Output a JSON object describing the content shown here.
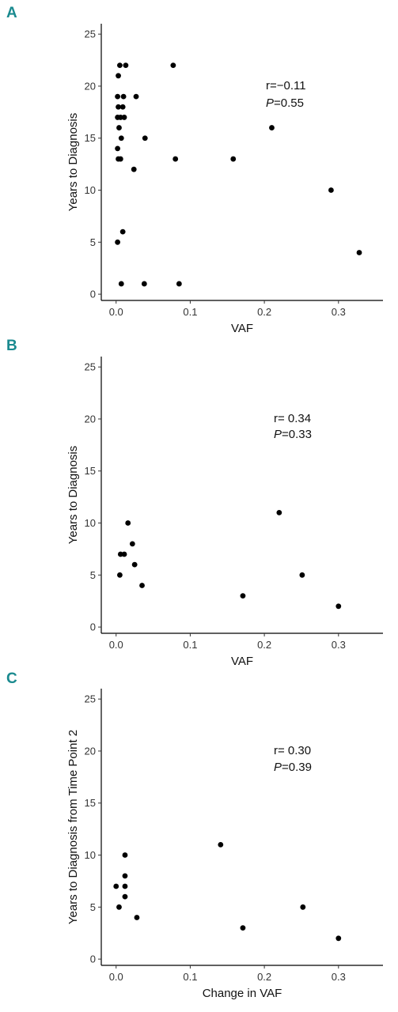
{
  "panels": [
    {
      "label": "A"
    },
    {
      "label": "B"
    },
    {
      "label": "C"
    }
  ],
  "chart_data": [
    {
      "type": "scatter",
      "panel_label": "A",
      "xlabel": "VAF",
      "ylabel": "Years to Diagnosis",
      "xlim": [
        -0.02,
        0.36
      ],
      "ylim": [
        -0.6,
        26
      ],
      "xticks": [
        0.0,
        0.1,
        0.2,
        0.3
      ],
      "xtick_labels": [
        "0.0",
        "0.1",
        "0.2",
        "0.3"
      ],
      "yticks": [
        0,
        5,
        10,
        15,
        20,
        25
      ],
      "ytick_labels": [
        "0",
        "5",
        "10",
        "15",
        "20",
        "25"
      ],
      "grid": false,
      "annotation": {
        "r_text": "r=−0.11",
        "p_label": "P",
        "p_value": "=0.55"
      },
      "points": [
        [
          0.005,
          22
        ],
        [
          0.013,
          22
        ],
        [
          0.077,
          22
        ],
        [
          0.003,
          21
        ],
        [
          0.002,
          19
        ],
        [
          0.01,
          19
        ],
        [
          0.027,
          19
        ],
        [
          0.003,
          18
        ],
        [
          0.009,
          18
        ],
        [
          0.002,
          17
        ],
        [
          0.006,
          17
        ],
        [
          0.011,
          17
        ],
        [
          0.004,
          16
        ],
        [
          0.21,
          16
        ],
        [
          0.007,
          15
        ],
        [
          0.039,
          15
        ],
        [
          0.002,
          14
        ],
        [
          0.003,
          13
        ],
        [
          0.006,
          13
        ],
        [
          0.08,
          13
        ],
        [
          0.158,
          13
        ],
        [
          0.024,
          12
        ],
        [
          0.29,
          10
        ],
        [
          0.009,
          6
        ],
        [
          0.002,
          5
        ],
        [
          0.328,
          4
        ],
        [
          0.007,
          1
        ],
        [
          0.038,
          1
        ],
        [
          0.085,
          1
        ]
      ]
    },
    {
      "type": "scatter",
      "panel_label": "B",
      "xlabel": "VAF",
      "ylabel": "Years to Diagnosis",
      "xlim": [
        -0.02,
        0.36
      ],
      "ylim": [
        -0.6,
        26
      ],
      "xticks": [
        0.0,
        0.1,
        0.2,
        0.3
      ],
      "xtick_labels": [
        "0.0",
        "0.1",
        "0.2",
        "0.3"
      ],
      "yticks": [
        0,
        5,
        10,
        15,
        20,
        25
      ],
      "ytick_labels": [
        "0",
        "5",
        "10",
        "15",
        "20",
        "25"
      ],
      "grid": false,
      "annotation": {
        "r_text": "r= 0.34",
        "p_label": "P",
        "p_value": "=0.33"
      },
      "points": [
        [
          0.016,
          10
        ],
        [
          0.22,
          11
        ],
        [
          0.022,
          8
        ],
        [
          0.006,
          7
        ],
        [
          0.011,
          7
        ],
        [
          0.025,
          6
        ],
        [
          0.005,
          5
        ],
        [
          0.251,
          5
        ],
        [
          0.035,
          4
        ],
        [
          0.171,
          3
        ],
        [
          0.3,
          2
        ]
      ]
    },
    {
      "type": "scatter",
      "panel_label": "C",
      "xlabel": "Change in VAF",
      "ylabel": "Years to Diagnosis from Time Point 2",
      "xlim": [
        -0.02,
        0.36
      ],
      "ylim": [
        -0.6,
        26
      ],
      "xticks": [
        0.0,
        0.1,
        0.2,
        0.3
      ],
      "xtick_labels": [
        "0.0",
        "0.1",
        "0.2",
        "0.3"
      ],
      "yticks": [
        0,
        5,
        10,
        15,
        20,
        25
      ],
      "ytick_labels": [
        "0",
        "5",
        "10",
        "15",
        "20",
        "25"
      ],
      "grid": false,
      "annotation": {
        "r_text": "r= 0.30",
        "p_label": "P",
        "p_value": "=0.39"
      },
      "points": [
        [
          0.012,
          10
        ],
        [
          0.141,
          11
        ],
        [
          0.012,
          8
        ],
        [
          0.0,
          7
        ],
        [
          0.012,
          7
        ],
        [
          0.012,
          6
        ],
        [
          0.004,
          5
        ],
        [
          0.252,
          5
        ],
        [
          0.028,
          4
        ],
        [
          0.171,
          3
        ],
        [
          0.3,
          2
        ]
      ]
    }
  ]
}
